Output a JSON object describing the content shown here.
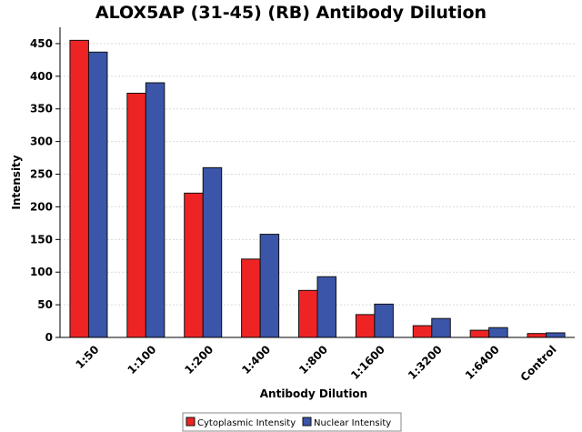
{
  "chart_data": {
    "type": "bar",
    "title": "ALOX5AP (31-45) (RB) Antibody Dilution",
    "xlabel": "Antibody Dilution",
    "ylabel": "Intensity",
    "categories": [
      "1:50",
      "1:100",
      "1:200",
      "1:400",
      "1:800",
      "1:1600",
      "1:3200",
      "1:6400",
      "Control"
    ],
    "series": [
      {
        "name": "Cytoplasmic Intensity",
        "color": "#ee2424",
        "values": [
          455,
          374,
          221,
          120,
          72,
          35,
          18,
          11,
          6
        ]
      },
      {
        "name": "Nuclear Intensity",
        "color": "#3b55a8",
        "values": [
          437,
          390,
          260,
          158,
          93,
          51,
          29,
          15,
          7
        ]
      }
    ],
    "ylim": [
      0,
      475
    ],
    "yticks": [
      0,
      50,
      100,
      150,
      200,
      250,
      300,
      350,
      400,
      450
    ],
    "grid": true,
    "legend_position": "bottom"
  }
}
